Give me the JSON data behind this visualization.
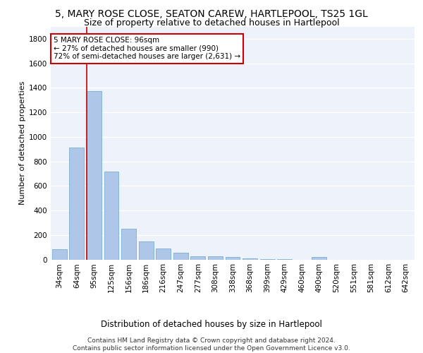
{
  "title": "5, MARY ROSE CLOSE, SEATON CAREW, HARTLEPOOL, TS25 1GL",
  "subtitle": "Size of property relative to detached houses in Hartlepool",
  "xlabel": "Distribution of detached houses by size in Hartlepool",
  "ylabel": "Number of detached properties",
  "categories": [
    "34sqm",
    "64sqm",
    "95sqm",
    "125sqm",
    "156sqm",
    "186sqm",
    "216sqm",
    "247sqm",
    "277sqm",
    "308sqm",
    "338sqm",
    "368sqm",
    "399sqm",
    "429sqm",
    "460sqm",
    "490sqm",
    "520sqm",
    "551sqm",
    "581sqm",
    "612sqm",
    "642sqm"
  ],
  "values": [
    85,
    910,
    1375,
    715,
    250,
    148,
    88,
    55,
    28,
    28,
    18,
    10,
    5,
    3,
    0,
    18,
    0,
    0,
    0,
    0,
    0
  ],
  "bar_color": "#aec6e8",
  "bar_edge_color": "#7aafd4",
  "annotation_text": "5 MARY ROSE CLOSE: 96sqm\n← 27% of detached houses are smaller (990)\n72% of semi-detached houses are larger (2,631) →",
  "annotation_box_color": "#cc0000",
  "ylim": [
    0,
    1900
  ],
  "yticks": [
    0,
    200,
    400,
    600,
    800,
    1000,
    1200,
    1400,
    1600,
    1800
  ],
  "bg_color": "#eef2fb",
  "footer_text": "Contains HM Land Registry data © Crown copyright and database right 2024.\nContains public sector information licensed under the Open Government Licence v3.0.",
  "grid_color": "#ffffff",
  "title_fontsize": 10,
  "subtitle_fontsize": 9,
  "ylabel_fontsize": 8,
  "tick_fontsize": 7.5,
  "footer_fontsize": 6.5,
  "xlabel_fontsize": 8.5
}
